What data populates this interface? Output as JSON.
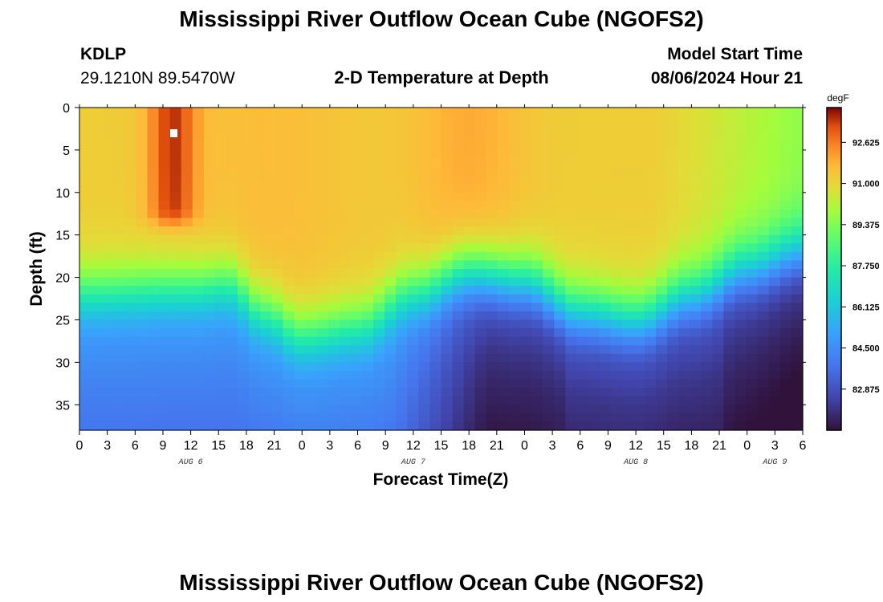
{
  "title": "Mississippi River Outflow Ocean Cube (NGOFS2)",
  "footer_title": "Mississippi River Outflow Ocean Cube (NGOFS2)",
  "station": {
    "id": "KDLP",
    "coords": "29.1210N  89.5470W"
  },
  "subtitle": "2-D Temperature at Depth",
  "model_start": {
    "label": "Model Start Time",
    "value": "08/06/2024 Hour 21"
  },
  "chart_data": {
    "type": "heatmap",
    "title": "2-D Temperature at Depth",
    "xlabel": "Forecast Time(Z)",
    "ylabel": "Depth (ft)",
    "x_ticks": [
      "0",
      "3",
      "6",
      "9",
      "12",
      "15",
      "18",
      "21",
      "0",
      "3",
      "6",
      "9",
      "12",
      "15",
      "18",
      "21",
      "0",
      "3",
      "6",
      "9",
      "12",
      "15",
      "18",
      "21",
      "0",
      "3",
      "6"
    ],
    "x_hours": [
      0,
      3,
      6,
      9,
      12,
      15,
      18,
      21,
      24,
      27,
      30,
      33,
      36,
      39,
      42,
      45,
      48,
      51,
      54,
      57,
      60,
      63,
      66,
      69,
      72,
      75,
      78
    ],
    "x_range_hours": [
      0,
      78
    ],
    "date_labels": [
      {
        "label": "AUG 6",
        "hour": 12
      },
      {
        "label": "AUG 7",
        "hour": 36
      },
      {
        "label": "AUG 8",
        "hour": 60
      },
      {
        "label": "AUG 9",
        "hour": 75
      }
    ],
    "y_ticks": [
      0,
      5,
      10,
      15,
      20,
      25,
      30,
      35
    ],
    "y_range_ft": [
      0,
      38
    ],
    "colorbar": {
      "unit": "degF",
      "min": 81.25,
      "max": 94.0,
      "tick_labels": [
        "92.625",
        "91.000",
        "89.375",
        "87.750",
        "86.125",
        "84.500",
        "82.875"
      ]
    },
    "temperature_profile_summary": {
      "surface_layer_degF": [
        91.0,
        93.5
      ],
      "bottom_layer_degF": [
        81.5,
        84.5
      ],
      "warmest_core": {
        "hour": 10,
        "depth_ft": [
          0,
          12
        ],
        "degF": 93.5
      },
      "thermocline_depth_ft": [
        {
          "hour": 0,
          "depth": 22
        },
        {
          "hour": 12,
          "depth": 21.5
        },
        {
          "hour": 16,
          "depth": 21
        },
        {
          "hour": 20,
          "depth": 24.5
        },
        {
          "hour": 24,
          "depth": 27
        },
        {
          "hour": 30,
          "depth": 26
        },
        {
          "hour": 36,
          "depth": 22
        },
        {
          "hour": 42,
          "depth": 19.5
        },
        {
          "hour": 48,
          "depth": 20.5
        },
        {
          "hour": 54,
          "depth": 24
        },
        {
          "hour": 60,
          "depth": 25
        },
        {
          "hour": 66,
          "depth": 22
        },
        {
          "hour": 72,
          "depth": 19
        },
        {
          "hour": 78,
          "depth": 17
        }
      ]
    }
  }
}
